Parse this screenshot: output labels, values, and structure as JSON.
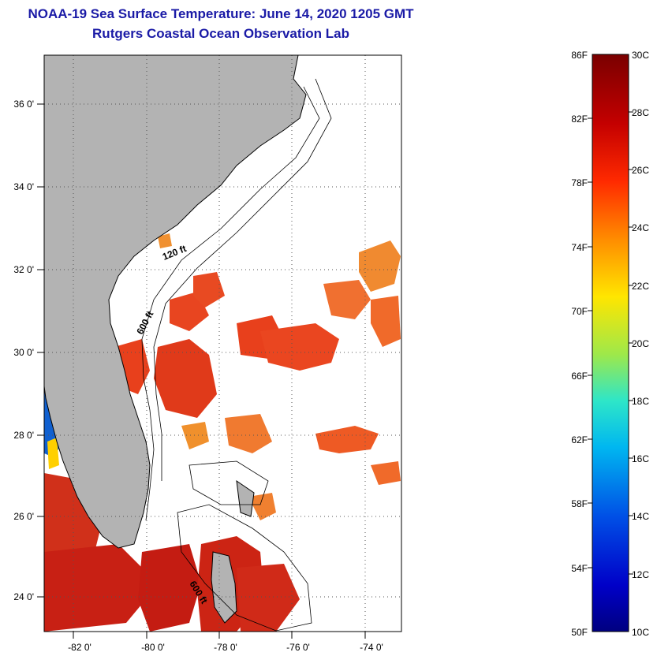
{
  "title": {
    "line1": "NOAA-19 Sea Surface Temperature:  June 14, 2020 1205 GMT",
    "line2": "Rutgers Coastal Ocean Observation Lab"
  },
  "map": {
    "lat_labels": [
      "36 0'",
      "34 0'",
      "32 0'",
      "30 0'",
      "28 0'",
      "26 0'",
      "24 0'"
    ],
    "lon_labels": [
      "-82 0'",
      "-80 0'",
      "-78 0'",
      "-76 0'",
      "-74 0'"
    ],
    "isobath_labels": [
      "120 ft",
      "600 ft",
      "600 ft"
    ],
    "colors": {
      "land": "#b3b3b3",
      "ocean": "#ffffff",
      "outline": "#000000"
    }
  },
  "colorbar": {
    "fahrenheit": [
      "86F",
      "82F",
      "78F",
      "74F",
      "70F",
      "66F",
      "62F",
      "58F",
      "54F",
      "50F"
    ],
    "celsius": [
      "30C",
      "28C",
      "26C",
      "24C",
      "22C",
      "20C",
      "18C",
      "16C",
      "14C",
      "12C",
      "10C"
    ]
  }
}
